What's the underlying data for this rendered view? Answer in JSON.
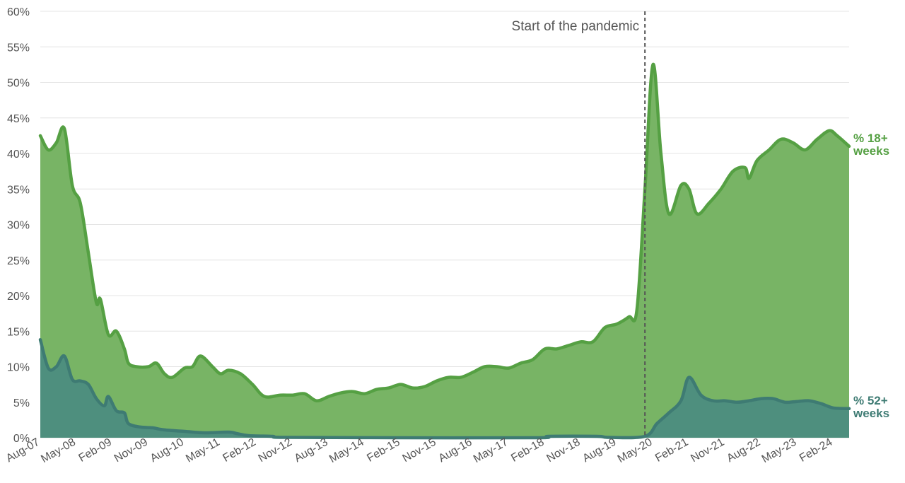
{
  "chart_data": {
    "type": "area",
    "title": "",
    "xlabel": "",
    "ylabel": "",
    "ylim": [
      0,
      60
    ],
    "y_ticks": [
      "0%",
      "5%",
      "10%",
      "15%",
      "20%",
      "25%",
      "30%",
      "35%",
      "40%",
      "45%",
      "50%",
      "55%",
      "60%"
    ],
    "x_ticks": [
      "Aug-07",
      "May-08",
      "Feb-09",
      "Nov-09",
      "Aug-10",
      "May-11",
      "Feb-12",
      "Nov-12",
      "Aug-13",
      "May-14",
      "Feb-15",
      "Nov-15",
      "Aug-16",
      "May-17",
      "Feb-18",
      "Nov-18",
      "Aug-19",
      "May-20",
      "Feb-21",
      "Nov-21",
      "Aug-22",
      "May-23",
      "Feb-24"
    ],
    "x_range": [
      "2007-08",
      "2024-06"
    ],
    "grid": true,
    "annotation": {
      "text": "Start of the pandemic",
      "x": "2020-03"
    },
    "series": [
      {
        "name": "% 18+ weeks",
        "label_lines": [
          "% 18+",
          "weeks"
        ],
        "color": "#55a043",
        "fill": "#78b465",
        "points": [
          [
            "2007-08",
            42.5
          ],
          [
            "2007-10",
            40.5
          ],
          [
            "2007-12",
            41.5
          ],
          [
            "2008-02",
            43.5
          ],
          [
            "2008-04",
            35.5
          ],
          [
            "2008-06",
            33
          ],
          [
            "2008-08",
            26
          ],
          [
            "2008-10",
            19
          ],
          [
            "2008-11",
            19.5
          ],
          [
            "2009-01",
            14.5
          ],
          [
            "2009-03",
            15
          ],
          [
            "2009-05",
            12.5
          ],
          [
            "2009-06",
            10.5
          ],
          [
            "2009-08",
            10
          ],
          [
            "2009-11",
            10
          ],
          [
            "2010-01",
            10.5
          ],
          [
            "2010-03",
            9
          ],
          [
            "2010-05",
            8.5
          ],
          [
            "2010-08",
            9.8
          ],
          [
            "2010-10",
            10
          ],
          [
            "2010-12",
            11.5
          ],
          [
            "2011-03",
            10
          ],
          [
            "2011-05",
            9
          ],
          [
            "2011-07",
            9.5
          ],
          [
            "2011-10",
            9
          ],
          [
            "2012-01",
            7.5
          ],
          [
            "2012-04",
            5.8
          ],
          [
            "2012-08",
            6
          ],
          [
            "2012-11",
            6
          ],
          [
            "2013-02",
            6.2
          ],
          [
            "2013-05",
            5.2
          ],
          [
            "2013-08",
            5.8
          ],
          [
            "2013-11",
            6.3
          ],
          [
            "2014-02",
            6.5
          ],
          [
            "2014-05",
            6.2
          ],
          [
            "2014-08",
            6.8
          ],
          [
            "2014-11",
            7
          ],
          [
            "2015-02",
            7.5
          ],
          [
            "2015-05",
            7
          ],
          [
            "2015-08",
            7.2
          ],
          [
            "2015-11",
            8
          ],
          [
            "2016-02",
            8.5
          ],
          [
            "2016-05",
            8.5
          ],
          [
            "2016-08",
            9.2
          ],
          [
            "2016-11",
            10
          ],
          [
            "2017-02",
            10
          ],
          [
            "2017-05",
            9.8
          ],
          [
            "2017-08",
            10.5
          ],
          [
            "2017-11",
            11
          ],
          [
            "2018-02",
            12.5
          ],
          [
            "2018-05",
            12.5
          ],
          [
            "2018-08",
            13
          ],
          [
            "2018-11",
            13.5
          ],
          [
            "2019-02",
            13.5
          ],
          [
            "2019-05",
            15.5
          ],
          [
            "2019-08",
            16
          ],
          [
            "2019-11",
            17
          ],
          [
            "2020-01",
            18
          ],
          [
            "2020-03",
            35
          ],
          [
            "2020-05",
            52.5
          ],
          [
            "2020-07",
            40
          ],
          [
            "2020-09",
            31.5
          ],
          [
            "2020-12",
            35.5
          ],
          [
            "2021-02",
            35
          ],
          [
            "2021-04",
            31.5
          ],
          [
            "2021-07",
            33
          ],
          [
            "2021-10",
            35
          ],
          [
            "2022-01",
            37.5
          ],
          [
            "2022-04",
            38
          ],
          [
            "2022-05",
            36.5
          ],
          [
            "2022-07",
            39
          ],
          [
            "2022-10",
            40.5
          ],
          [
            "2023-01",
            42
          ],
          [
            "2023-04",
            41.5
          ],
          [
            "2023-07",
            40.5
          ],
          [
            "2023-10",
            42
          ],
          [
            "2024-01",
            43.2
          ],
          [
            "2024-03",
            42.5
          ],
          [
            "2024-06",
            41
          ]
        ]
      },
      {
        "name": "% 52+ weeks",
        "label_lines": [
          "% 52+",
          "weeks"
        ],
        "color": "#3e7b73",
        "fill": "#4e8f7e",
        "points": [
          [
            "2007-08",
            13.8
          ],
          [
            "2007-10",
            9.8
          ],
          [
            "2007-12",
            10
          ],
          [
            "2008-02",
            11.5
          ],
          [
            "2008-04",
            8.2
          ],
          [
            "2008-06",
            8
          ],
          [
            "2008-08",
            7.5
          ],
          [
            "2008-10",
            5.5
          ],
          [
            "2008-12",
            4.5
          ],
          [
            "2009-01",
            5.8
          ],
          [
            "2009-03",
            3.8
          ],
          [
            "2009-05",
            3.5
          ],
          [
            "2009-06",
            2
          ],
          [
            "2009-09",
            1.5
          ],
          [
            "2009-12",
            1.4
          ],
          [
            "2010-03",
            1.1
          ],
          [
            "2010-08",
            0.9
          ],
          [
            "2011-01",
            0.7
          ],
          [
            "2011-07",
            0.8
          ],
          [
            "2011-09",
            0.6
          ],
          [
            "2011-12",
            0.3
          ],
          [
            "2012-06",
            0.2
          ],
          [
            "2012-09",
            0.05
          ],
          [
            "2015-01",
            0
          ],
          [
            "2017-12",
            0
          ],
          [
            "2018-03",
            0.2
          ],
          [
            "2019-03",
            0.2
          ],
          [
            "2019-06",
            0.05
          ],
          [
            "2020-03",
            0.2
          ],
          [
            "2020-06",
            2
          ],
          [
            "2020-09",
            3.5
          ],
          [
            "2020-12",
            5.2
          ],
          [
            "2021-02",
            8.5
          ],
          [
            "2021-05",
            6
          ],
          [
            "2021-08",
            5.2
          ],
          [
            "2021-11",
            5.2
          ],
          [
            "2022-02",
            5
          ],
          [
            "2022-05",
            5.2
          ],
          [
            "2022-08",
            5.5
          ],
          [
            "2022-11",
            5.5
          ],
          [
            "2023-02",
            5
          ],
          [
            "2023-05",
            5.1
          ],
          [
            "2023-08",
            5.2
          ],
          [
            "2023-11",
            4.8
          ],
          [
            "2024-02",
            4.2
          ],
          [
            "2024-06",
            4.1
          ]
        ]
      }
    ]
  }
}
